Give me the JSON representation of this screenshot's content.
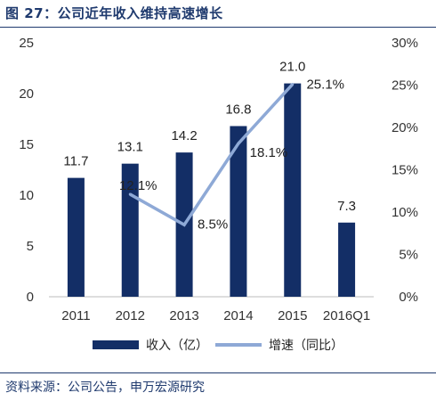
{
  "figure": {
    "title": "图 27：公司近年收入维持高速增长",
    "source": "资料来源：公司公告，申万宏源研究"
  },
  "colors": {
    "bar": "#132e66",
    "line": "#8ea9d6",
    "title": "#1f3a6e"
  },
  "chart_data": {
    "type": "bar",
    "categories": [
      "2011",
      "2012",
      "2013",
      "2014",
      "2015",
      "2016Q1"
    ],
    "series": [
      {
        "name": "收入（亿）",
        "type": "bar",
        "axis": "left",
        "values": [
          11.7,
          13.1,
          14.2,
          16.8,
          21.0,
          7.3
        ],
        "labels": [
          "11.7",
          "13.1",
          "14.2",
          "16.8",
          "21.0",
          "7.3"
        ]
      },
      {
        "name": "增速（同比）",
        "type": "line",
        "axis": "right",
        "values": [
          null,
          12.1,
          8.5,
          18.1,
          25.1,
          null
        ],
        "labels": [
          null,
          "12.1%",
          "8.5%",
          "18.1%",
          "25.1%",
          null
        ]
      }
    ],
    "y_left": {
      "min": 0,
      "max": 25,
      "ticks": [
        "0",
        "5",
        "10",
        "15",
        "20",
        "25"
      ]
    },
    "y_right": {
      "min": 0,
      "max": 30,
      "ticks": [
        "0%",
        "5%",
        "10%",
        "15%",
        "20%",
        "25%",
        "30%"
      ]
    },
    "grid": false,
    "legend_position": "bottom"
  }
}
